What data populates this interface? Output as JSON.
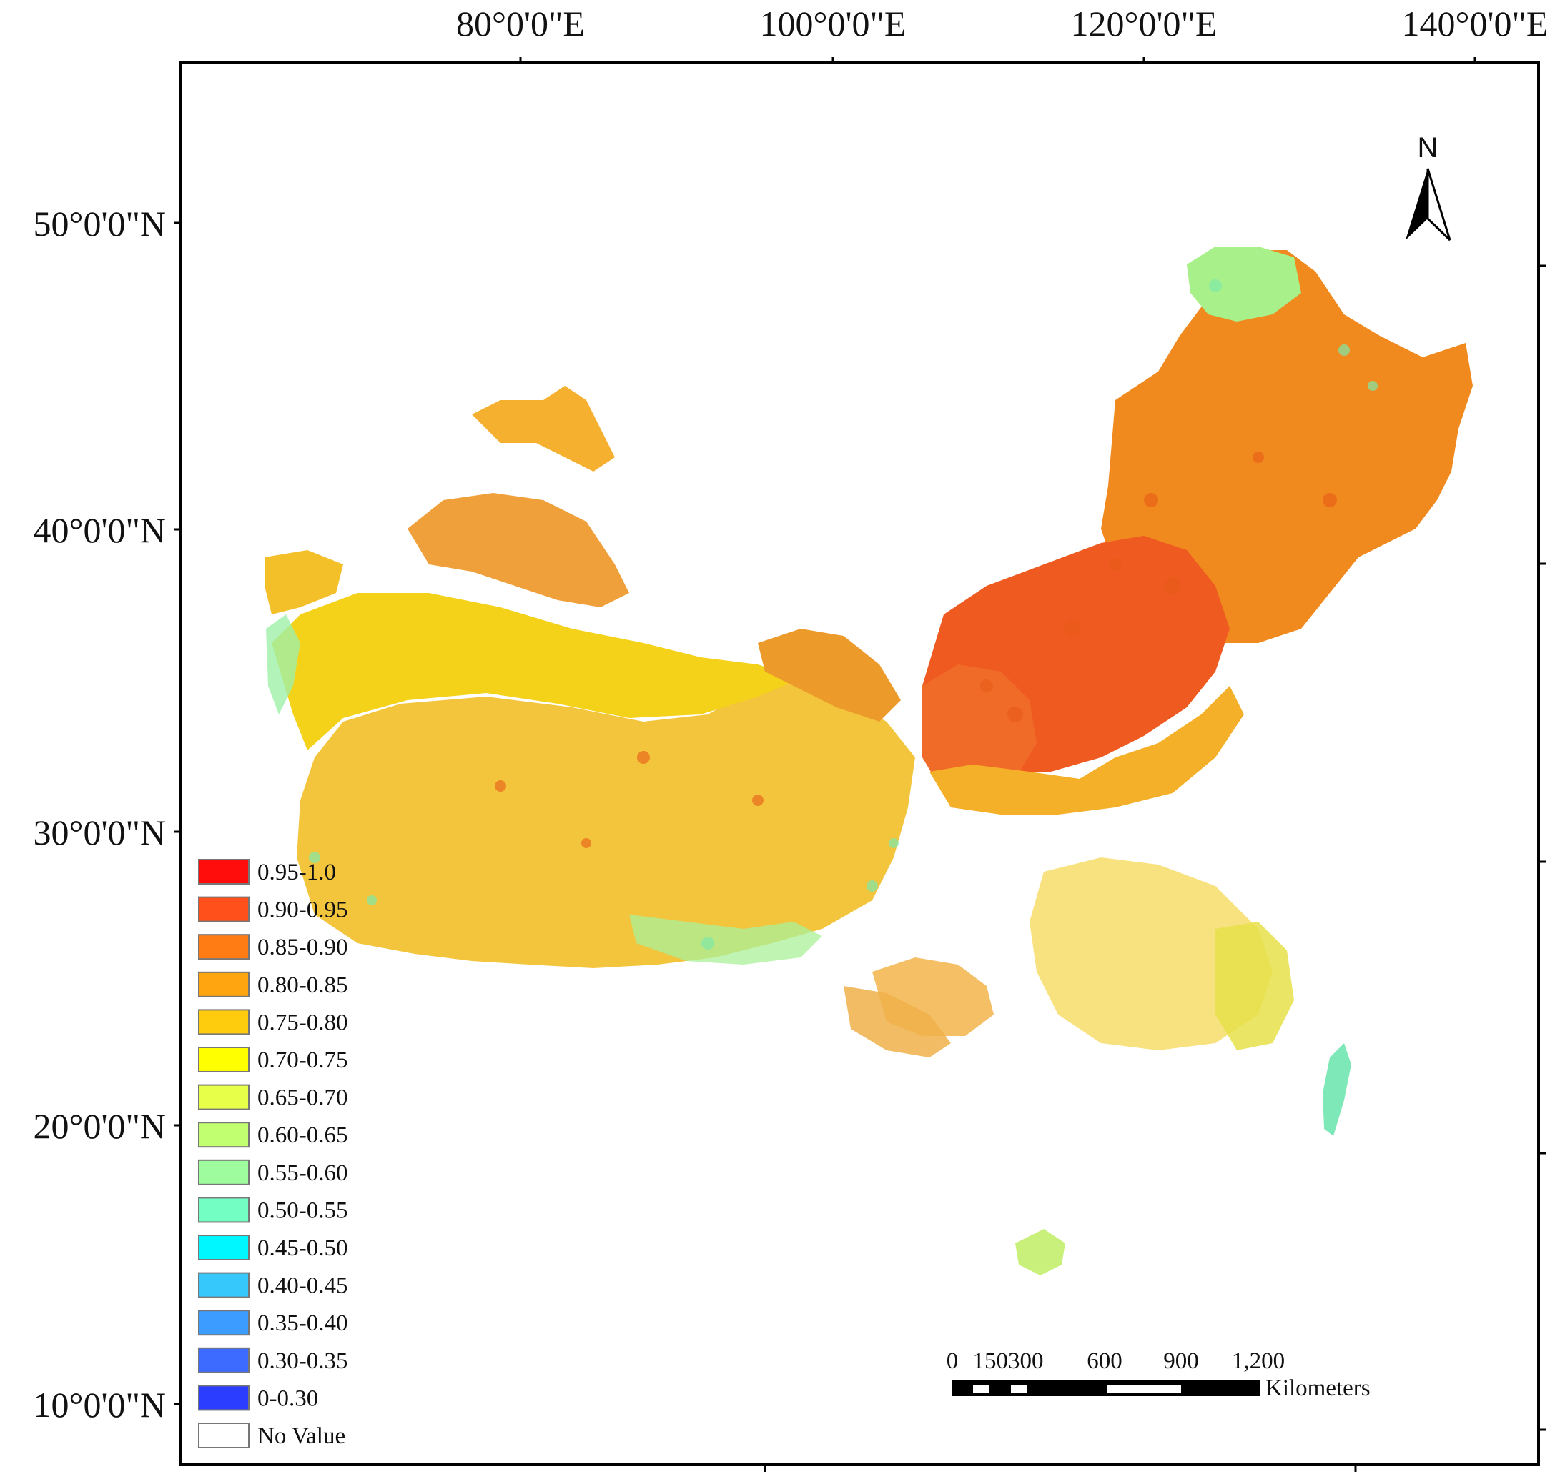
{
  "map": {
    "top_ticks": [
      "80°0'0\"E",
      "100°0'0\"E",
      "120°0'0\"E",
      "140°0'0\"E"
    ],
    "left_ticks": [
      "50°0'0\"N",
      "40°0'0\"N",
      "30°0'0\"N",
      "20°0'0\"N",
      "10°0'0\"N"
    ],
    "colors": {
      "frame": "#000000",
      "background": "#ffffff"
    }
  },
  "legend": {
    "items": [
      {
        "label": "0.95-1.0",
        "color": "#ff0d0d"
      },
      {
        "label": "0.90-0.95",
        "color": "#ff4f1a"
      },
      {
        "label": "0.85-0.90",
        "color": "#ff7c14"
      },
      {
        "label": "0.80-0.85",
        "color": "#ffa50f"
      },
      {
        "label": "0.75-0.80",
        "color": "#ffcc0d"
      },
      {
        "label": "0.70-0.75",
        "color": "#ffff00"
      },
      {
        "label": "0.65-0.70",
        "color": "#e8ff4a"
      },
      {
        "label": "0.60-0.65",
        "color": "#c2ff70"
      },
      {
        "label": "0.55-0.60",
        "color": "#9efc9e"
      },
      {
        "label": "0.50-0.55",
        "color": "#73ffc4"
      },
      {
        "label": "0.45-0.50",
        "color": "#00f7ff"
      },
      {
        "label": "0.40-0.45",
        "color": "#36c8fa"
      },
      {
        "label": "0.35-0.40",
        "color": "#3d9cff"
      },
      {
        "label": "0.30-0.35",
        "color": "#3d6bff"
      },
      {
        "label": "0-0.30",
        "color": "#2b3dff"
      },
      {
        "label": "No Value",
        "color": "#ffffff"
      }
    ]
  },
  "scale_bar": {
    "labels": [
      "0",
      "150300",
      "600",
      "900",
      "1,200"
    ],
    "unit": "Kilometers"
  },
  "north_arrow": {
    "label": "N",
    "icon": "north-arrow-icon"
  }
}
